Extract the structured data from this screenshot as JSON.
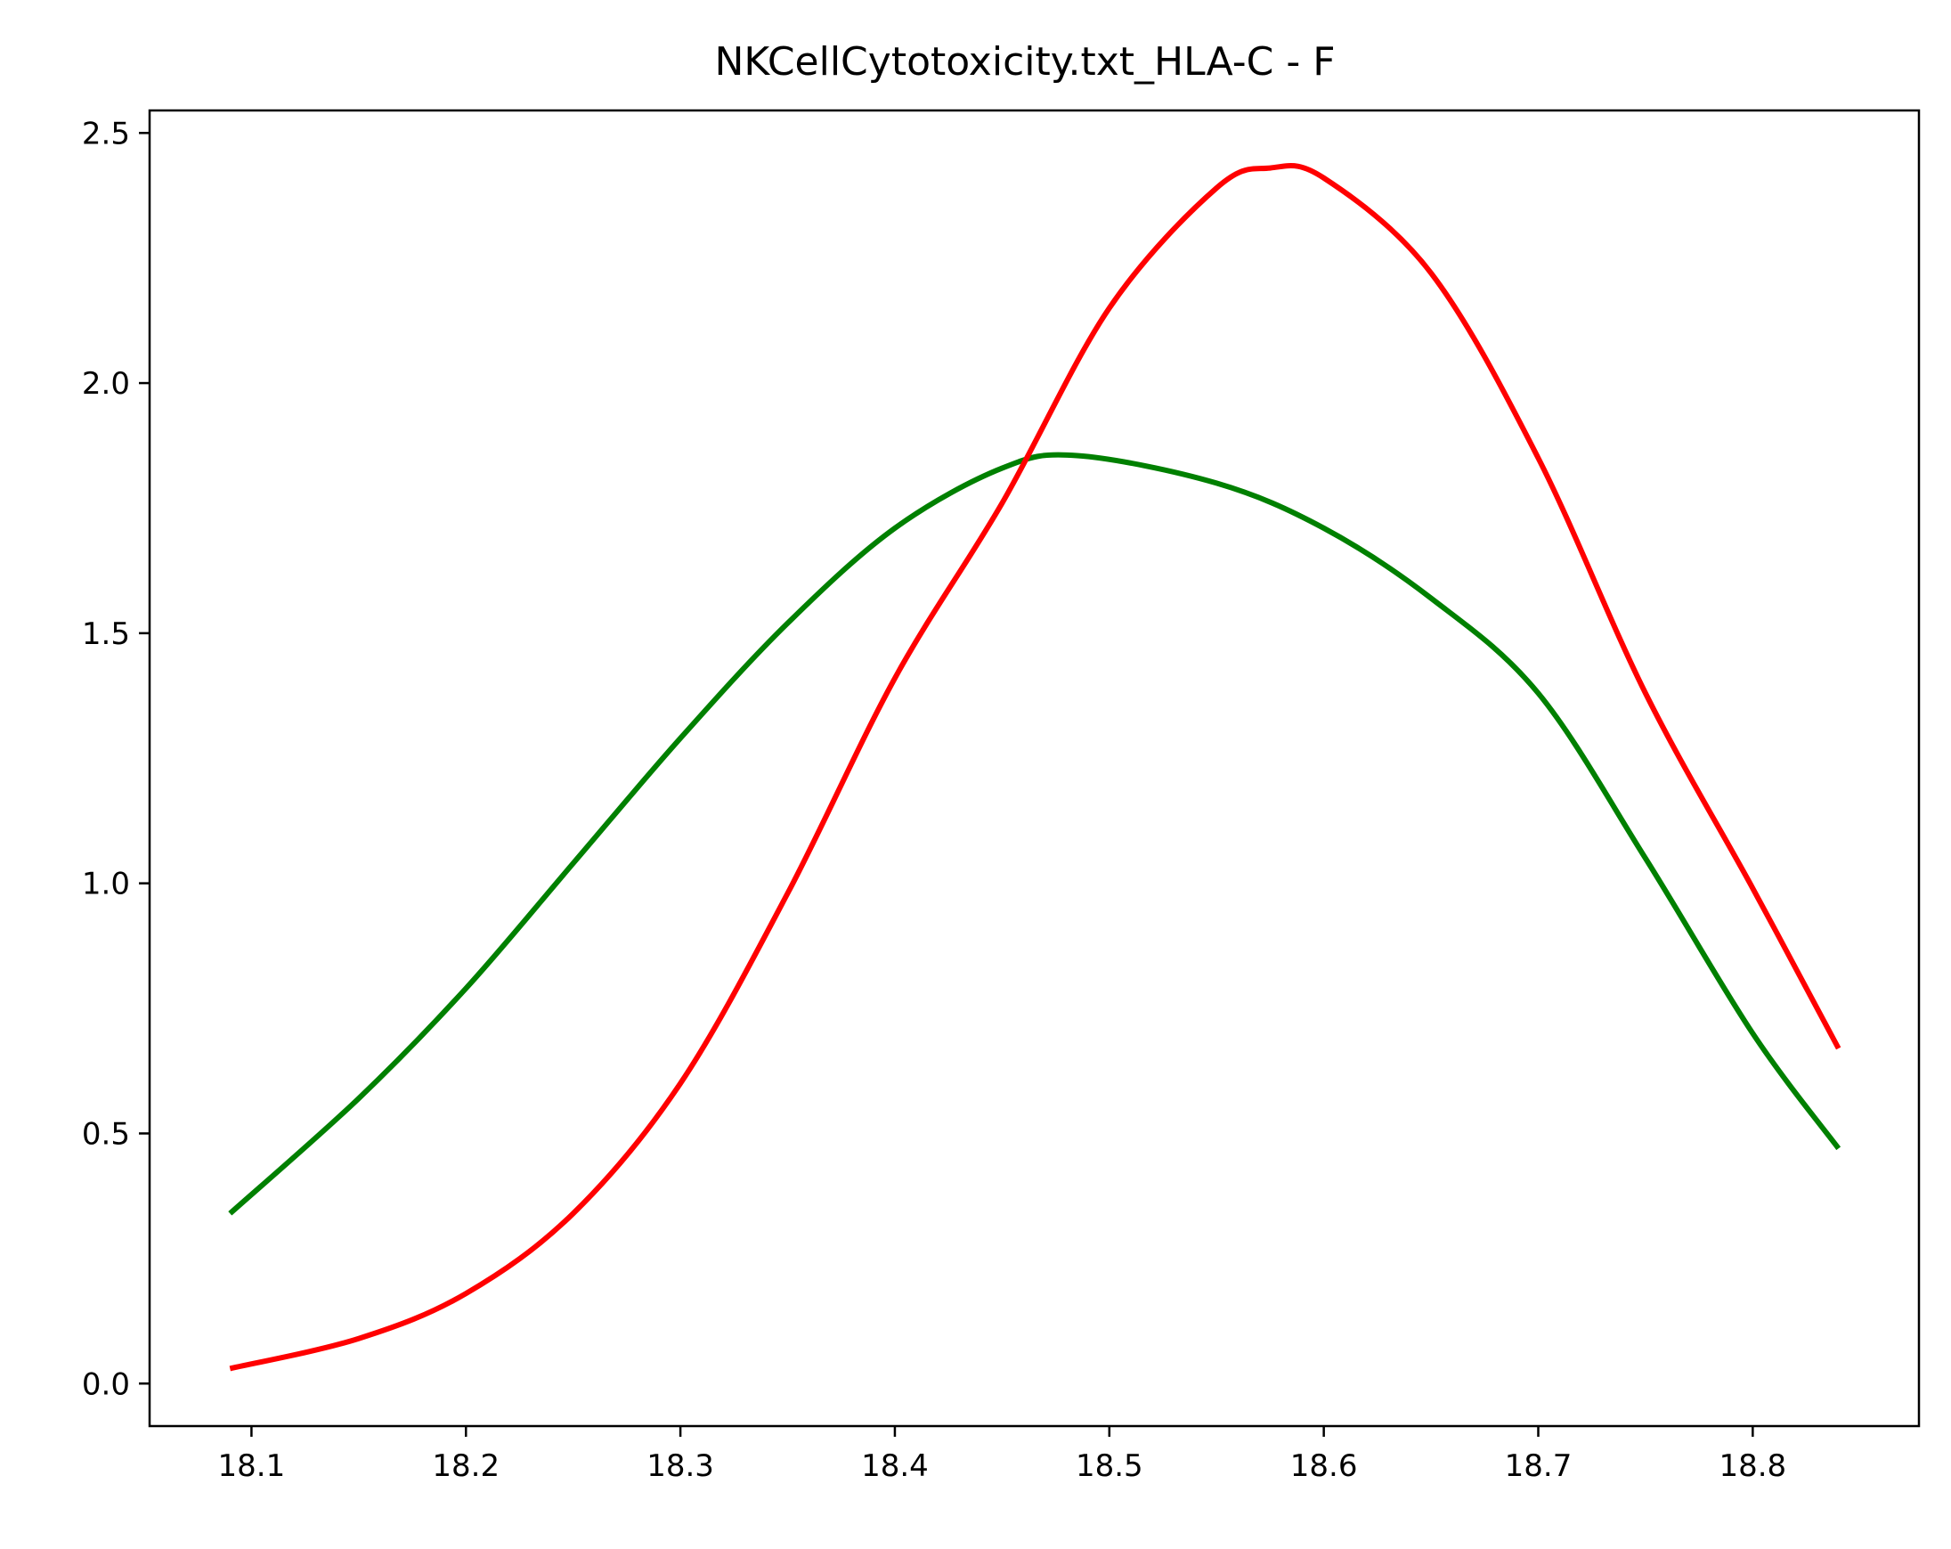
{
  "chart_data": {
    "type": "line",
    "title": "NKCellCytotoxicity.txt_HLA-C - F",
    "xlabel": "",
    "ylabel": "",
    "xlim": [
      18.0525,
      18.8775
    ],
    "ylim": [
      -0.085,
      2.545
    ],
    "grid": false,
    "xticks": [
      18.1,
      18.2,
      18.3,
      18.4,
      18.5,
      18.6,
      18.7,
      18.8
    ],
    "xtick_labels": [
      "18.1",
      "18.2",
      "18.3",
      "18.4",
      "18.5",
      "18.6",
      "18.7",
      "18.8"
    ],
    "yticks": [
      0.0,
      0.5,
      1.0,
      1.5,
      2.0,
      2.5
    ],
    "ytick_labels": [
      "0.0",
      "0.5",
      "1.0",
      "1.5",
      "2.0",
      "2.5"
    ],
    "series": [
      {
        "color": "#008000",
        "x": [
          18.09,
          18.15,
          18.2,
          18.25,
          18.3,
          18.35,
          18.4,
          18.45,
          18.485,
          18.55,
          18.6,
          18.65,
          18.7,
          18.75,
          18.8,
          18.84
        ],
        "y": [
          0.34,
          0.57,
          0.79,
          1.04,
          1.29,
          1.52,
          1.71,
          1.83,
          1.855,
          1.8,
          1.71,
          1.57,
          1.38,
          1.05,
          0.7,
          0.47
        ]
      },
      {
        "color": "#ff0000",
        "x": [
          18.09,
          18.15,
          18.2,
          18.25,
          18.3,
          18.35,
          18.4,
          18.45,
          18.5,
          18.55,
          18.575,
          18.6,
          18.65,
          18.7,
          18.75,
          18.8,
          18.84
        ],
        "y": [
          0.03,
          0.09,
          0.18,
          0.34,
          0.6,
          0.98,
          1.41,
          1.76,
          2.15,
          2.39,
          2.43,
          2.41,
          2.22,
          1.85,
          1.38,
          0.99,
          0.67
        ]
      }
    ]
  }
}
